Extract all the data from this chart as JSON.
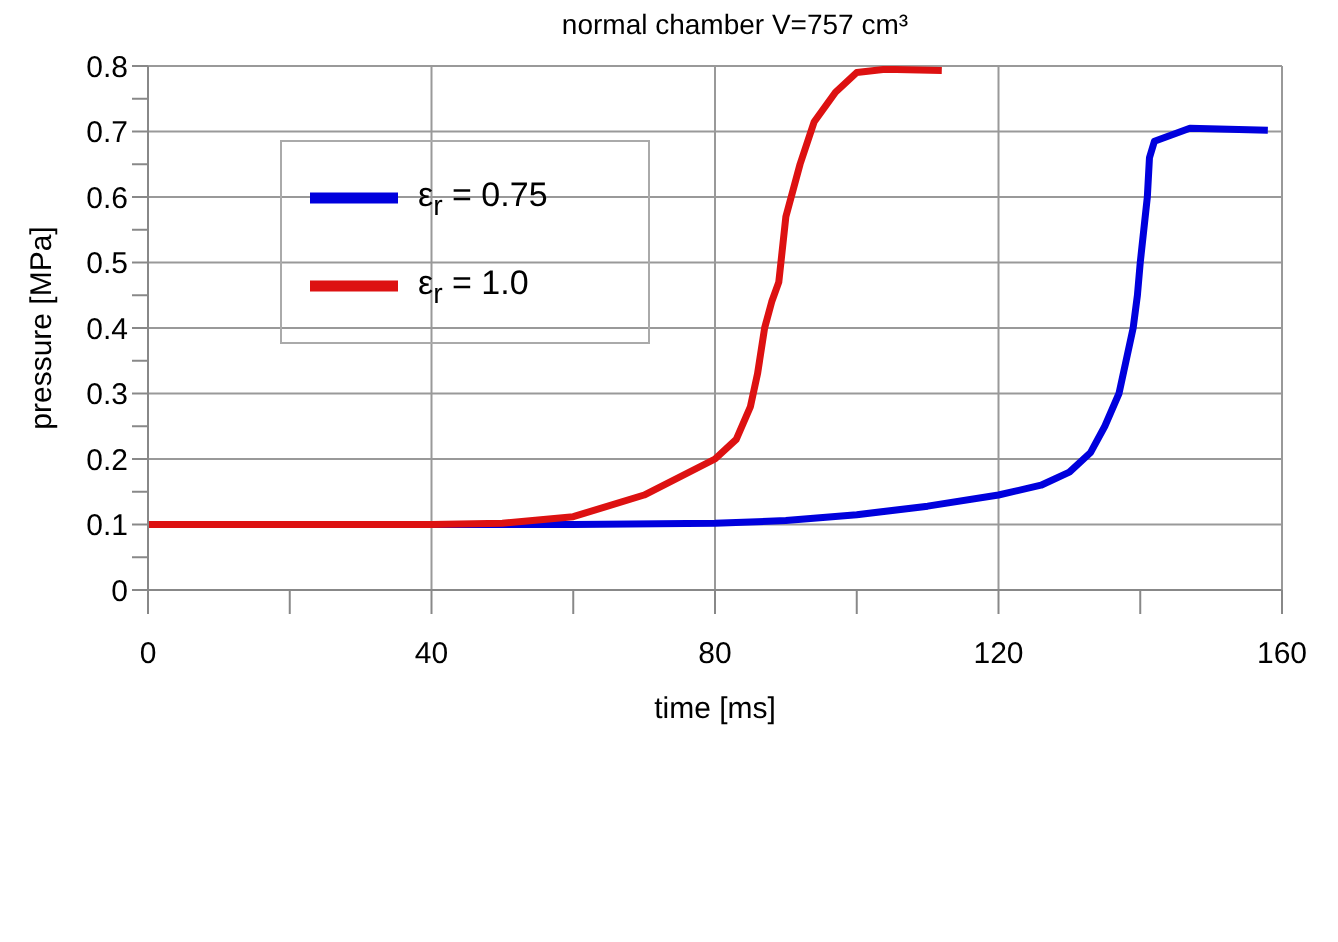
{
  "chart_data": {
    "type": "line",
    "title": "normal chamber  V=757 cm³",
    "xlabel": "time [ms]",
    "ylabel": "pressure [MPa]",
    "xlim": [
      0,
      160
    ],
    "xticks": [
      0,
      {
        "value": 20,
        "label": null
      },
      40,
      {
        "value": 60,
        "label": null
      },
      80,
      {
        "value": 100,
        "label": null
      },
      120,
      {
        "value": 140,
        "label": null
      },
      160
    ],
    "ylim": [
      0,
      0.8
    ],
    "yticks": [
      0,
      {
        "value": 0.05,
        "label": null
      },
      0.1,
      {
        "value": 0.15,
        "label": null
      },
      0.2,
      {
        "value": 0.25,
        "label": null
      },
      0.3,
      {
        "value": 0.35,
        "label": null
      },
      0.4,
      {
        "value": 0.45,
        "label": null
      },
      0.5,
      {
        "value": 0.55,
        "label": null
      },
      0.6,
      {
        "value": 0.65,
        "label": null
      },
      0.7,
      {
        "value": 0.75,
        "label": null
      },
      0.8
    ],
    "grid": true,
    "legend": "top left",
    "marker": "none",
    "line_style": "solid",
    "series": [
      {
        "name": "ε$_{r}$ = 0.75",
        "color": "#0000dd",
        "x": [
          0,
          60,
          80,
          90,
          100,
          110,
          120,
          126,
          130,
          133,
          135,
          137,
          138,
          139,
          139.6,
          140,
          140.5,
          141,
          141.3,
          142,
          147,
          158
        ],
        "values": [
          0.1,
          0.1,
          0.102,
          0.106,
          0.115,
          0.128,
          0.145,
          0.16,
          0.18,
          0.21,
          0.25,
          0.3,
          0.35,
          0.4,
          0.45,
          0.5,
          0.55,
          0.6,
          0.66,
          0.685,
          0.705,
          0.702
        ]
      },
      {
        "name": "ε$_{r}$ = 1.0",
        "color": "#dd1111",
        "x": [
          0,
          40,
          50,
          60,
          70,
          80,
          83,
          85,
          86,
          87,
          88,
          89,
          90,
          92,
          94,
          97,
          100,
          104,
          112
        ],
        "values": [
          0.1,
          0.1,
          0.102,
          0.112,
          0.145,
          0.2,
          0.23,
          0.28,
          0.33,
          0.4,
          0.44,
          0.47,
          0.57,
          0.65,
          0.715,
          0.76,
          0.79,
          0.795,
          0.793
        ]
      }
    ]
  }
}
